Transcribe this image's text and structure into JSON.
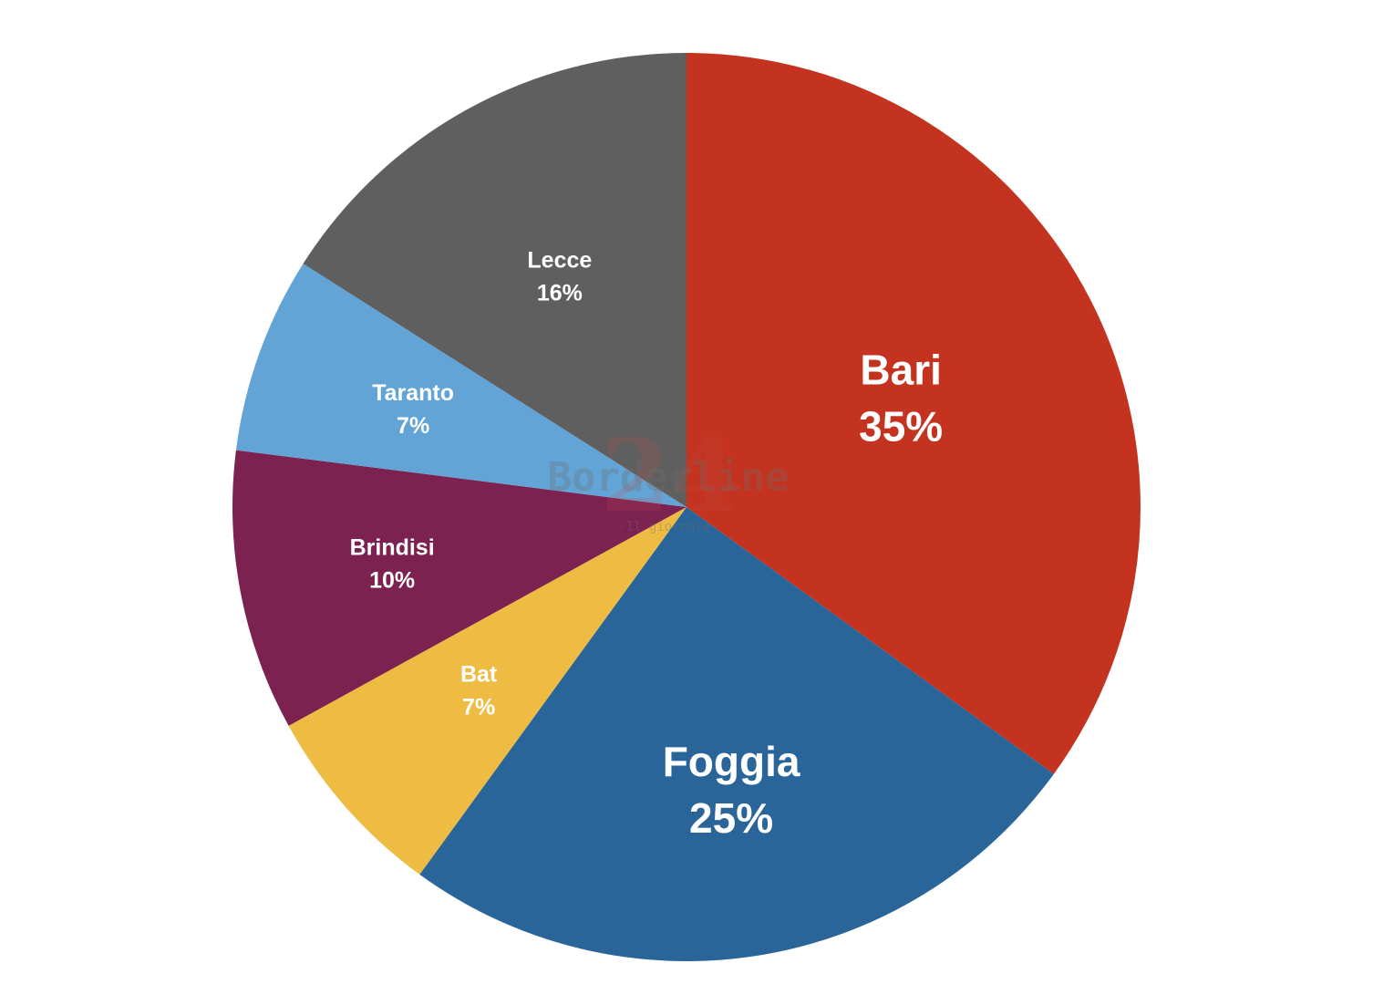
{
  "chart_data": {
    "type": "pie",
    "title": "",
    "start_angle_deg": 0,
    "direction": "clockwise",
    "slices": [
      {
        "label": "Bari",
        "value": 35,
        "display": "35%",
        "color": "#C3331F"
      },
      {
        "label": "Foggia",
        "value": 25,
        "display": "25%",
        "color": "#2A6599"
      },
      {
        "label": "Bat",
        "value": 7,
        "display": "7%",
        "color": "#EEBB43"
      },
      {
        "label": "Brindisi",
        "value": 10,
        "display": "10%",
        "color": "#7C2250"
      },
      {
        "label": "Taranto",
        "value": 7,
        "display": "7%",
        "color": "#62A4D6"
      },
      {
        "label": "Lecce",
        "value": 16,
        "display": "16%",
        "color": "#5F5F5F"
      }
    ]
  },
  "watermark": {
    "brand": "Borderline",
    "number": "24",
    "tagline": "-Il giornale-"
  }
}
